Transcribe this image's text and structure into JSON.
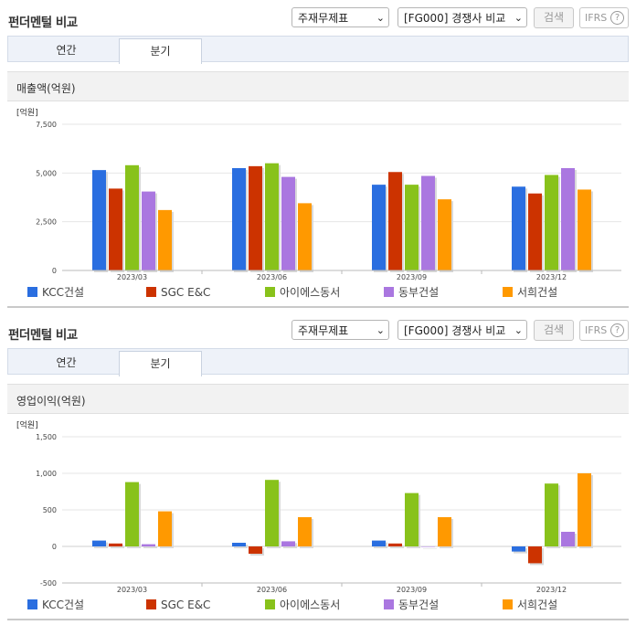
{
  "panels": [
    {
      "title": "펀더멘털 비교",
      "select_statement": "주재무제표",
      "select_compare": "[FG000] 경쟁사 비교",
      "search_button": "검색",
      "ifrs_label": "IFRS",
      "help_label": "?",
      "tabs": [
        {
          "label": "연간",
          "active": false
        },
        {
          "label": "분기",
          "active": true
        }
      ],
      "section_title": "매출액(억원)",
      "unit_label": "[억원]"
    },
    {
      "title": "펀더멘털 비교",
      "select_statement": "주재무제표",
      "select_compare": "[FG000] 경쟁사 비교",
      "search_button": "검색",
      "ifrs_label": "IFRS",
      "help_label": "?",
      "tabs": [
        {
          "label": "연간",
          "active": false
        },
        {
          "label": "분기",
          "active": true
        }
      ],
      "section_title": "영업이익(억원)",
      "unit_label": "[억원]"
    }
  ],
  "chart_data": [
    {
      "type": "bar",
      "title": "매출액(억원)",
      "ylabel": "[억원]",
      "categories": [
        "2023/03",
        "2023/06",
        "2023/09",
        "2023/12"
      ],
      "ylim": [
        0,
        7500
      ],
      "yticks": [
        0,
        2500,
        5000,
        7500
      ],
      "ytick_labels": [
        "0",
        "2,500",
        "5,000",
        "7,500"
      ],
      "grid": true,
      "legend": "bottom",
      "series": [
        {
          "name": "KCC건설",
          "color": "#2a6ee0",
          "values": [
            5150,
            5250,
            4400,
            4300
          ]
        },
        {
          "name": "SGC E&C",
          "color": "#cc3300",
          "values": [
            4200,
            5350,
            5050,
            3950
          ]
        },
        {
          "name": "아이에스동서",
          "color": "#88c21b",
          "values": [
            5400,
            5500,
            4400,
            4900
          ]
        },
        {
          "name": "동부건설",
          "color": "#aa77e0",
          "values": [
            4050,
            4800,
            4850,
            5250
          ]
        },
        {
          "name": "서희건설",
          "color": "#ff9900",
          "values": [
            3100,
            3450,
            3650,
            4150
          ]
        }
      ]
    },
    {
      "type": "bar",
      "title": "영업이익(억원)",
      "ylabel": "[억원]",
      "categories": [
        "2023/03",
        "2023/06",
        "2023/09",
        "2023/12"
      ],
      "ylim": [
        -500,
        1500
      ],
      "yticks": [
        -500,
        0,
        500,
        1000,
        1500
      ],
      "ytick_labels": [
        "-500",
        "0",
        "500",
        "1,000",
        "1,500"
      ],
      "grid": true,
      "legend": "bottom",
      "series": [
        {
          "name": "KCC건설",
          "color": "#2a6ee0",
          "values": [
            80,
            50,
            80,
            -70
          ]
        },
        {
          "name": "SGC E&C",
          "color": "#cc3300",
          "values": [
            40,
            -100,
            40,
            -230
          ]
        },
        {
          "name": "아이에스동서",
          "color": "#88c21b",
          "values": [
            880,
            910,
            730,
            860
          ]
        },
        {
          "name": "동부건설",
          "color": "#aa77e0",
          "values": [
            30,
            70,
            0,
            200
          ]
        },
        {
          "name": "서희건설",
          "color": "#ff9900",
          "values": [
            480,
            400,
            400,
            1000
          ]
        }
      ]
    }
  ]
}
